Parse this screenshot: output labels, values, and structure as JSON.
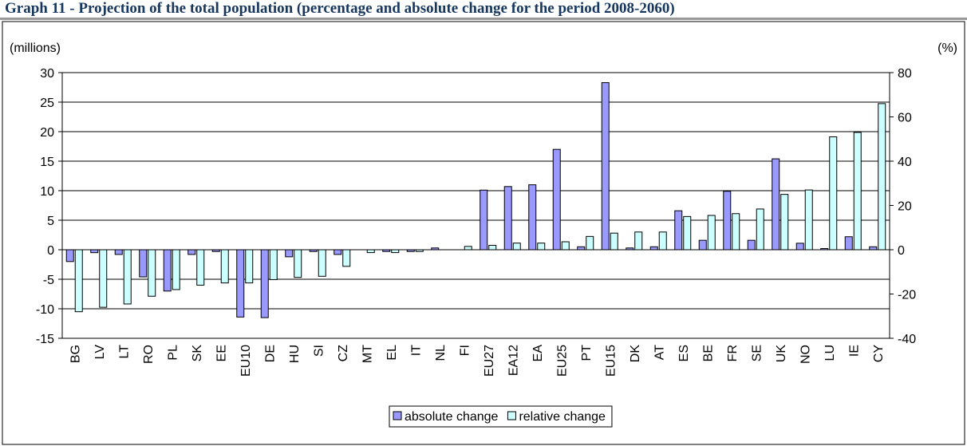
{
  "chart_data": {
    "type": "bar",
    "title": "Graph 11 - Projection of the total population (percentage and absolute change for the period 2008-2060)",
    "y_label": "(millions)",
    "y2_label": "(%)",
    "categories": [
      "BG",
      "LV",
      "LT",
      "RO",
      "PL",
      "SK",
      "EE",
      "EU10",
      "DE",
      "HU",
      "SI",
      "CZ",
      "MT",
      "EL",
      "IT",
      "NL",
      "FI",
      "EU27",
      "EA12",
      "EA",
      "EU25",
      "PT",
      "EU15",
      "DK",
      "AT",
      "ES",
      "BE",
      "FR",
      "SE",
      "UK",
      "NO",
      "LU",
      "IE",
      "CY"
    ],
    "series": [
      {
        "name": "absolute change",
        "color": "#9999ff",
        "axis": "y",
        "values": [
          -2.0,
          -0.5,
          -0.8,
          -4.6,
          -7.0,
          -0.8,
          -0.3,
          -11.4,
          -11.5,
          -1.2,
          -0.3,
          -0.8,
          0,
          -0.3,
          -0.3,
          0.3,
          0,
          10.1,
          10.7,
          11.0,
          17.0,
          0.5,
          28.3,
          0.3,
          0.5,
          6.6,
          1.6,
          9.9,
          1.6,
          15.4,
          1.1,
          0.2,
          2.2,
          0.5
        ]
      },
      {
        "name": "relative change",
        "color": "#ccffff",
        "axis": "y2",
        "values": [
          -28,
          -26,
          -24.5,
          -21,
          -18,
          -16,
          -15,
          -15,
          -13.5,
          -12.5,
          -12,
          -7.5,
          -1.3,
          -1.3,
          -0.8,
          0,
          1.5,
          2,
          3,
          3,
          3.6,
          6,
          7.5,
          8,
          8,
          15,
          15.5,
          16.3,
          18.4,
          25,
          27,
          51,
          53,
          66
        ]
      }
    ],
    "ylim": [
      -15,
      30
    ],
    "yticks": [
      -15,
      -10,
      -5,
      0,
      5,
      10,
      15,
      20,
      25,
      30
    ],
    "y2lim": [
      -40,
      80
    ],
    "y2ticks": [
      -40,
      -20,
      0,
      20,
      40,
      60,
      80
    ],
    "grid": true,
    "legend": "bottom"
  }
}
